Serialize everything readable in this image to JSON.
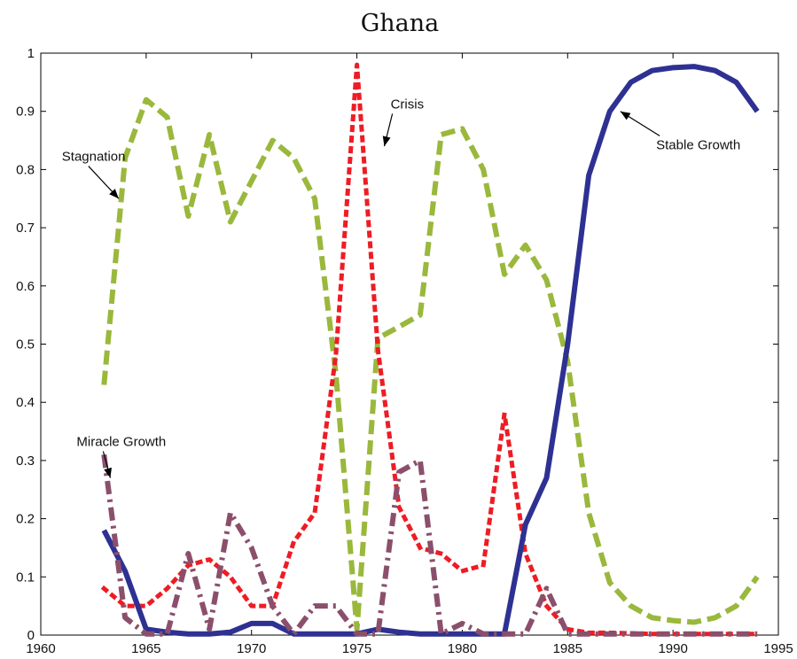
{
  "chart_data": {
    "type": "line",
    "title": "Ghana",
    "xlabel": "",
    "ylabel": "",
    "xlim": [
      1960,
      1995
    ],
    "ylim": [
      0,
      1
    ],
    "xticks": [
      "1960",
      "1965",
      "1970",
      "1975",
      "1980",
      "1985",
      "1990",
      "1995"
    ],
    "yticks": [
      "0",
      "0.1",
      "0.2",
      "0.3",
      "0.4",
      "0.5",
      "0.6",
      "0.7",
      "0.8",
      "0.9",
      "1"
    ],
    "grid": false,
    "x": [
      1963,
      1964,
      1965,
      1966,
      1967,
      1968,
      1969,
      1970,
      1971,
      1972,
      1973,
      1974,
      1975,
      1976,
      1977,
      1978,
      1979,
      1980,
      1981,
      1982,
      1983,
      1984,
      1985,
      1986,
      1987,
      1988,
      1989,
      1990,
      1991,
      1992,
      1993,
      1994
    ],
    "series": [
      {
        "name": "Stagnation",
        "color": "#9ab83c",
        "style": "dashed",
        "values": [
          0.43,
          0.82,
          0.92,
          0.89,
          0.72,
          0.86,
          0.71,
          0.78,
          0.85,
          0.82,
          0.75,
          0.45,
          0.01,
          0.51,
          0.53,
          0.55,
          0.86,
          0.87,
          0.8,
          0.62,
          0.67,
          0.61,
          0.47,
          0.21,
          0.09,
          0.05,
          0.03,
          0.025,
          0.022,
          0.03,
          0.05,
          0.1
        ]
      },
      {
        "name": "Crisis",
        "color": "#ee1c24",
        "style": "dotted",
        "values": [
          0.08,
          0.05,
          0.05,
          0.08,
          0.12,
          0.13,
          0.1,
          0.05,
          0.05,
          0.16,
          0.21,
          0.48,
          0.98,
          0.49,
          0.22,
          0.15,
          0.14,
          0.11,
          0.12,
          0.38,
          0.14,
          0.05,
          0.01,
          0.004,
          0.004,
          0.003,
          0.002,
          0.002,
          0.002,
          0.002,
          0.002,
          0.002
        ]
      },
      {
        "name": "Stable Growth",
        "color": "#2e3192",
        "style": "solid",
        "values": [
          0.18,
          0.11,
          0.01,
          0.005,
          0.002,
          0.002,
          0.005,
          0.02,
          0.02,
          0.002,
          0.002,
          0.002,
          0.002,
          0.01,
          0.005,
          0.002,
          0.002,
          0.002,
          0.002,
          0.002,
          0.19,
          0.27,
          0.5,
          0.79,
          0.9,
          0.95,
          0.97,
          0.975,
          0.977,
          0.97,
          0.95,
          0.9
        ]
      },
      {
        "name": "Miracle Growth",
        "color": "#8b4f6c",
        "style": "dashdot",
        "values": [
          0.31,
          0.03,
          0.002,
          0.002,
          0.14,
          0.01,
          0.21,
          0.15,
          0.05,
          0.002,
          0.05,
          0.05,
          0.002,
          0.002,
          0.28,
          0.3,
          0.002,
          0.02,
          0.002,
          0.002,
          0.002,
          0.08,
          0.002,
          0.002,
          0.002,
          0.002,
          0.002,
          0.002,
          0.002,
          0.002,
          0.002,
          0.002
        ]
      }
    ],
    "annotations": [
      {
        "text": "Stagnation",
        "x_label": 1961.0,
        "y_label": 0.815,
        "x_arrow": 1963.7,
        "y_arrow": 0.75
      },
      {
        "text": "Crisis",
        "x_label": 1976.6,
        "y_label": 0.905,
        "x_arrow": 1976.3,
        "y_arrow": 0.84
      },
      {
        "text": "Stable Growth",
        "x_label": 1989.2,
        "y_label": 0.835,
        "x_arrow": 1987.5,
        "y_arrow": 0.9
      },
      {
        "text": "Miracle Growth",
        "x_label": 1961.7,
        "y_label": 0.325,
        "x_arrow": 1963.3,
        "y_arrow": 0.27
      }
    ]
  }
}
